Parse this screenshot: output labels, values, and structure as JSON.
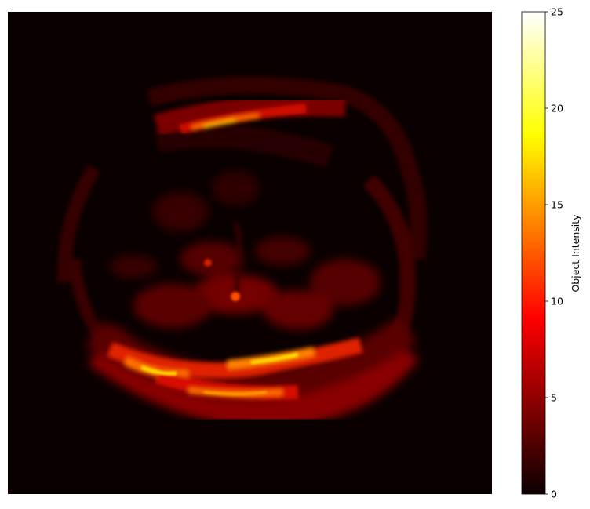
{
  "image": {
    "colormap": "hot",
    "background_color": "#0a0000"
  },
  "colorbar": {
    "label": "Object Intensity",
    "ticks": [
      {
        "value": 0,
        "label": "0"
      },
      {
        "value": 5,
        "label": "5"
      },
      {
        "value": 10,
        "label": "10"
      },
      {
        "value": 15,
        "label": "15"
      },
      {
        "value": 20,
        "label": "20"
      },
      {
        "value": 25,
        "label": "25"
      }
    ],
    "vmin": 0,
    "vmax": 25
  }
}
